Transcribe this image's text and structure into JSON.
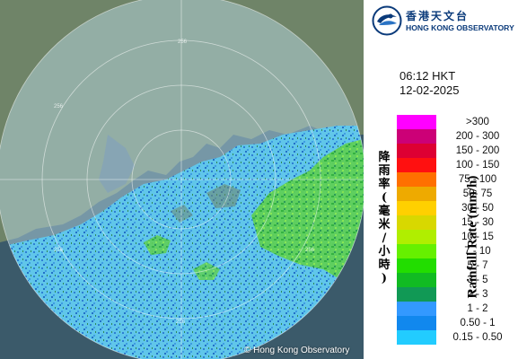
{
  "header": {
    "logo_chinese": "香港天文台",
    "logo_english": "HONG KONG OBSERVATORY"
  },
  "timestamp": {
    "time": "06:12 HKT",
    "date": "12-02-2025"
  },
  "legend": {
    "title_en": "Rainfall Rate (mm/h)",
    "title_cn": "降雨率(毫米/小時)",
    "items": [
      {
        "label": ">300",
        "color": "#ff00ff"
      },
      {
        "label": "200 - 300",
        "color": "#cc0077"
      },
      {
        "label": "150 - 200",
        "color": "#dd0033"
      },
      {
        "label": "100 - 150",
        "color": "#ff1010"
      },
      {
        "label": "75 - 100",
        "color": "#ff7000"
      },
      {
        "label": "50- 75",
        "color": "#eeaa00"
      },
      {
        "label": "30 - 50",
        "color": "#ffd000"
      },
      {
        "label": "15 - 30",
        "color": "#d8d800"
      },
      {
        "label": "10 - 15",
        "color": "#b0ee00"
      },
      {
        "label": "7 - 10",
        "color": "#66f000"
      },
      {
        "label": "5 - 7",
        "color": "#22dd00"
      },
      {
        "label": "3 - 5",
        "color": "#11bb22"
      },
      {
        "label": "2 - 3",
        "color": "#119955"
      },
      {
        "label": "1 - 2",
        "color": "#3399ff"
      },
      {
        "label": "0.50 - 1",
        "color": "#1188ee"
      },
      {
        "label": "0.15 - 0.50",
        "color": "#22ccff"
      }
    ]
  },
  "map": {
    "copyright": "© Hong Kong Observatory",
    "range_labels": [
      "256",
      "256",
      "256",
      "256",
      "256"
    ]
  }
}
